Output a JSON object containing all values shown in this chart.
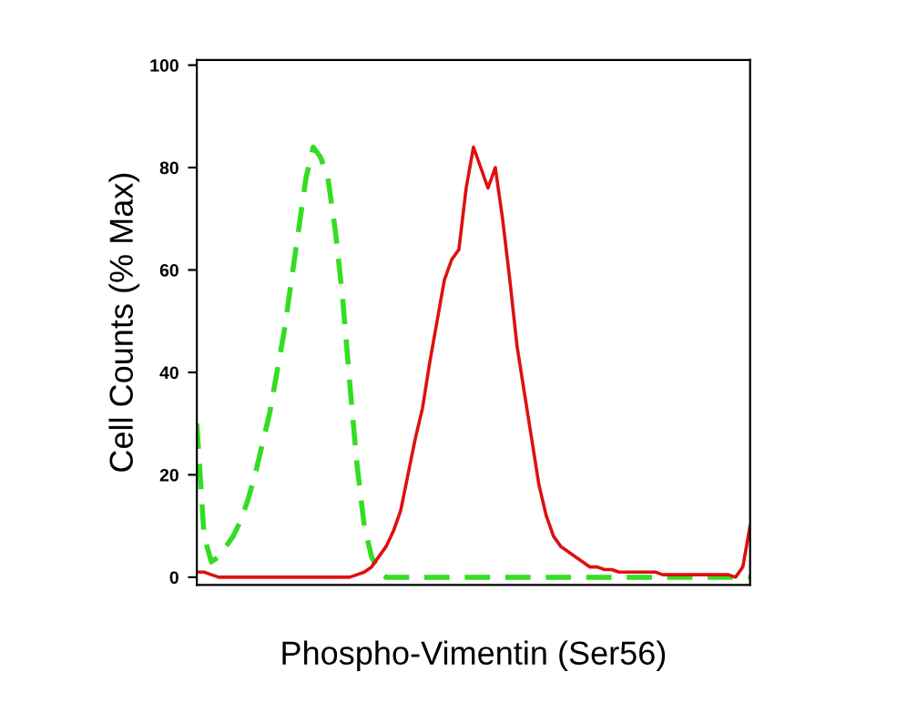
{
  "chart_data": {
    "type": "line",
    "xlabel": "Phospho-Vimentin (Ser56)",
    "ylabel": "Cell Counts (% Max)",
    "ylim": [
      -1.5,
      101
    ],
    "yticks": [
      0,
      20,
      40,
      60,
      80,
      100
    ],
    "tick_labels": "y",
    "grid": false,
    "legend": false,
    "categories": [
      null,
      null,
      null,
      null,
      null,
      null,
      null,
      null,
      null,
      null,
      null,
      null,
      null,
      null,
      null,
      null,
      null,
      null,
      null,
      null,
      null,
      null,
      null,
      null,
      null,
      null,
      null,
      null,
      null,
      null,
      null,
      null,
      null,
      null,
      null,
      null,
      null,
      null,
      null,
      null,
      null,
      null,
      null,
      null,
      null,
      null,
      null,
      null,
      null,
      null,
      null,
      null,
      null,
      null,
      null,
      null,
      null,
      null,
      null,
      null,
      null,
      null,
      null,
      null,
      null,
      null,
      null,
      null,
      null,
      null,
      null,
      null,
      null,
      null,
      null,
      null,
      null
    ],
    "series": [
      {
        "color": "#33dd22",
        "line_style": "dashed",
        "values": [
          30,
          8,
          3,
          4,
          6,
          8,
          11,
          15,
          20,
          26,
          32,
          40,
          48,
          58,
          68,
          78,
          84,
          82,
          78,
          68,
          55,
          38,
          22,
          10,
          4,
          1,
          0,
          0,
          0,
          0,
          0,
          0,
          0,
          0,
          0,
          0,
          0,
          0,
          0,
          0,
          0,
          0,
          0,
          0,
          0,
          0,
          0,
          0,
          0,
          0,
          0,
          0,
          0,
          0,
          0,
          0,
          0,
          0,
          0,
          0,
          0,
          0,
          0,
          0,
          0,
          0,
          0,
          0,
          0,
          0,
          0,
          0,
          0,
          0,
          0,
          0,
          0
        ]
      },
      {
        "color": "#dd1111",
        "line_style": "solid",
        "values": [
          1,
          1,
          0.5,
          0,
          0,
          0,
          0,
          0,
          0,
          0,
          0,
          0,
          0,
          0,
          0,
          0,
          0,
          0,
          0,
          0,
          0,
          0,
          0.5,
          1,
          2,
          4,
          6,
          9,
          13,
          20,
          27,
          33,
          42,
          50,
          58,
          62,
          64,
          76,
          84,
          80,
          76,
          80,
          70,
          58,
          45,
          36,
          27,
          18,
          12,
          8,
          6,
          5,
          4,
          3,
          2,
          2,
          1.5,
          1.5,
          1,
          1,
          1,
          1,
          1,
          1,
          0.5,
          0.5,
          0.5,
          0.5,
          0.5,
          0.5,
          0.5,
          0.5,
          0.5,
          0.5,
          0,
          2,
          10
        ]
      }
    ]
  }
}
